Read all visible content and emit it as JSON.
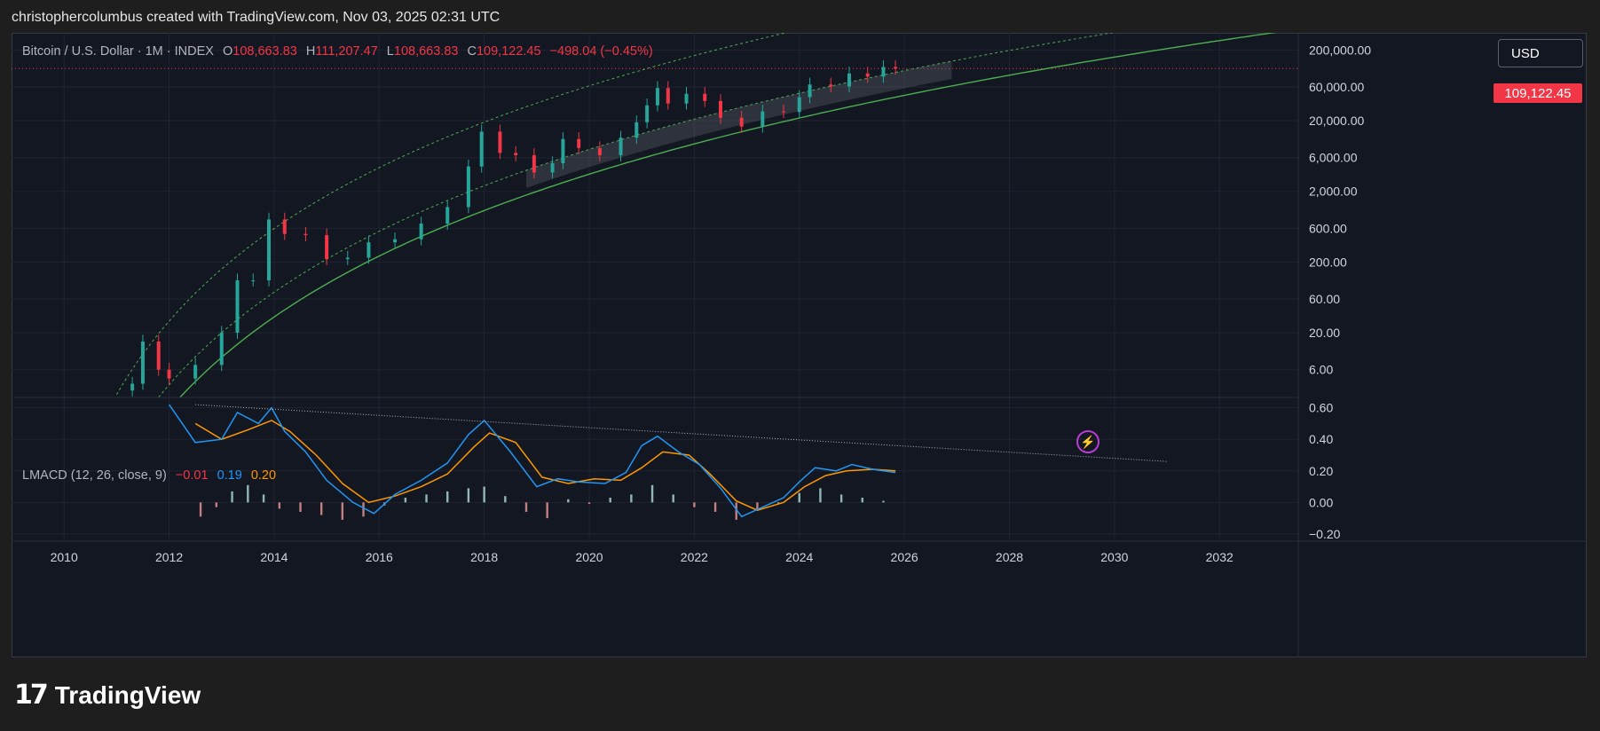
{
  "header": {
    "title": "christophercolumbus created with TradingView.com, Nov 03, 2025 02:31 UTC"
  },
  "legend": {
    "symbol": "Bitcoin / U.S. Dollar · 1M · INDEX",
    "open_label": "O",
    "open": "108,663.83",
    "high_label": "H",
    "high": "111,207.47",
    "low_label": "L",
    "low": "108,663.83",
    "close_label": "C",
    "close": "109,122.45",
    "change": "−498.04 (−0.45%)"
  },
  "macd_legend": {
    "name": "LMACD (12, 26, close, 9)",
    "hist": "−0.01",
    "macd": "0.19",
    "signal": "0.20"
  },
  "currency": "USD",
  "last_price": "109,122.45",
  "footer": {
    "brand": "TradingView",
    "logo_glyph": "17"
  },
  "icons": [
    "lightning-icon",
    "tradingview-logo-icon"
  ],
  "colors": {
    "up": "#26a69a",
    "down": "#f23645",
    "macd": "#2196f3",
    "signal": "#ff9800",
    "band": "#4caf50"
  },
  "chart_data": [
    {
      "type": "candlestick",
      "scale": "log",
      "xlim": [
        2009.0,
        2033.5
      ],
      "ylim": [
        2.5,
        350000
      ],
      "x_ticks": [
        "2010",
        "2012",
        "2014",
        "2016",
        "2018",
        "2020",
        "2022",
        "2024",
        "2026",
        "2028",
        "2030",
        "2032"
      ],
      "y_ticks": [
        "200,000.00",
        "60,000.00",
        "20,000.00",
        "6,000.00",
        "2,000.00",
        "600.00",
        "200.00",
        "60.00",
        "20.00",
        "6.00"
      ],
      "price_line": 109122.45,
      "series": [
        {
          "name": "Bitcoin / U.S. Dollar",
          "x": [
            2011.3,
            2011.5,
            2011.8,
            2012.0,
            2012.5,
            2013.0,
            2013.3,
            2013.6,
            2013.9,
            2014.2,
            2014.6,
            2015.0,
            2015.4,
            2015.8,
            2016.3,
            2016.8,
            2017.3,
            2017.7,
            2017.95,
            2018.3,
            2018.6,
            2018.95,
            2019.3,
            2019.5,
            2019.8,
            2020.2,
            2020.6,
            2020.9,
            2021.1,
            2021.3,
            2021.5,
            2021.85,
            2022.2,
            2022.5,
            2022.9,
            2023.3,
            2023.7,
            2024.0,
            2024.2,
            2024.6,
            2024.95,
            2025.3,
            2025.6,
            2025.83
          ],
          "close": [
            3.8,
            15,
            6,
            4.5,
            7,
            20,
            110,
            110,
            800,
            500,
            480,
            220,
            230,
            380,
            420,
            700,
            1200,
            4500,
            14000,
            7000,
            6500,
            3700,
            5000,
            11000,
            8200,
            6500,
            11500,
            19000,
            33000,
            58000,
            35000,
            48000,
            38000,
            22000,
            16500,
            27000,
            26500,
            43000,
            65000,
            61000,
            93000,
            84000,
            115000,
            109122
          ]
        }
      ]
    },
    {
      "type": "line",
      "ylim": [
        -0.24,
        0.66
      ],
      "y_ticks": [
        "0.60",
        "0.40",
        "0.20",
        "0.00",
        "−0.20"
      ],
      "series": [
        {
          "name": "LMACD",
          "x": [
            2012.0,
            2012.5,
            2013.0,
            2013.3,
            2013.7,
            2013.95,
            2014.2,
            2014.6,
            2015.0,
            2015.5,
            2015.9,
            2016.3,
            2016.8,
            2017.3,
            2017.7,
            2018.0,
            2018.5,
            2019.0,
            2019.4,
            2019.8,
            2020.3,
            2020.7,
            2021.0,
            2021.3,
            2021.7,
            2022.1,
            2022.5,
            2022.9,
            2023.3,
            2023.7,
            2024.0,
            2024.3,
            2024.7,
            2025.0,
            2025.4,
            2025.83
          ],
          "values": [
            0.62,
            0.38,
            0.4,
            0.57,
            0.5,
            0.6,
            0.45,
            0.32,
            0.14,
            0.0,
            -0.07,
            0.05,
            0.14,
            0.25,
            0.43,
            0.52,
            0.32,
            0.1,
            0.15,
            0.13,
            0.12,
            0.19,
            0.36,
            0.42,
            0.32,
            0.24,
            0.09,
            -0.09,
            -0.03,
            0.03,
            0.13,
            0.22,
            0.2,
            0.24,
            0.21,
            0.19
          ]
        },
        {
          "name": "Signal",
          "x": [
            2012.5,
            2013.0,
            2013.5,
            2013.95,
            2014.3,
            2014.8,
            2015.3,
            2015.8,
            2016.3,
            2016.8,
            2017.3,
            2017.8,
            2018.1,
            2018.6,
            2019.1,
            2019.6,
            2020.1,
            2020.6,
            2021.0,
            2021.4,
            2021.9,
            2022.3,
            2022.8,
            2023.2,
            2023.7,
            2024.1,
            2024.5,
            2024.9,
            2025.4,
            2025.83
          ],
          "values": [
            0.5,
            0.4,
            0.46,
            0.52,
            0.45,
            0.3,
            0.12,
            0.0,
            0.04,
            0.1,
            0.18,
            0.35,
            0.44,
            0.38,
            0.16,
            0.12,
            0.15,
            0.14,
            0.22,
            0.32,
            0.3,
            0.18,
            0.01,
            -0.05,
            0.0,
            0.1,
            0.17,
            0.2,
            0.21,
            0.2
          ]
        },
        {
          "name": "Histogram",
          "x": [
            2012.6,
            2012.9,
            2013.2,
            2013.5,
            2013.8,
            2014.1,
            2014.5,
            2014.9,
            2015.3,
            2015.7,
            2016.1,
            2016.5,
            2016.9,
            2017.3,
            2017.7,
            2018.0,
            2018.4,
            2018.8,
            2019.2,
            2019.6,
            2020.0,
            2020.4,
            2020.8,
            2021.2,
            2021.6,
            2022.0,
            2022.4,
            2022.8,
            2023.2,
            2023.6,
            2024.0,
            2024.4,
            2024.8,
            2025.2,
            2025.6
          ],
          "values": [
            -0.09,
            -0.03,
            0.07,
            0.11,
            0.05,
            -0.04,
            -0.06,
            -0.08,
            -0.11,
            -0.09,
            -0.02,
            0.03,
            0.05,
            0.07,
            0.09,
            0.1,
            0.04,
            -0.06,
            -0.1,
            0.02,
            -0.01,
            0.03,
            0.05,
            0.11,
            0.05,
            -0.03,
            -0.06,
            -0.11,
            -0.05,
            0.0,
            0.06,
            0.09,
            0.05,
            0.03,
            0.01
          ]
        }
      ]
    }
  ]
}
